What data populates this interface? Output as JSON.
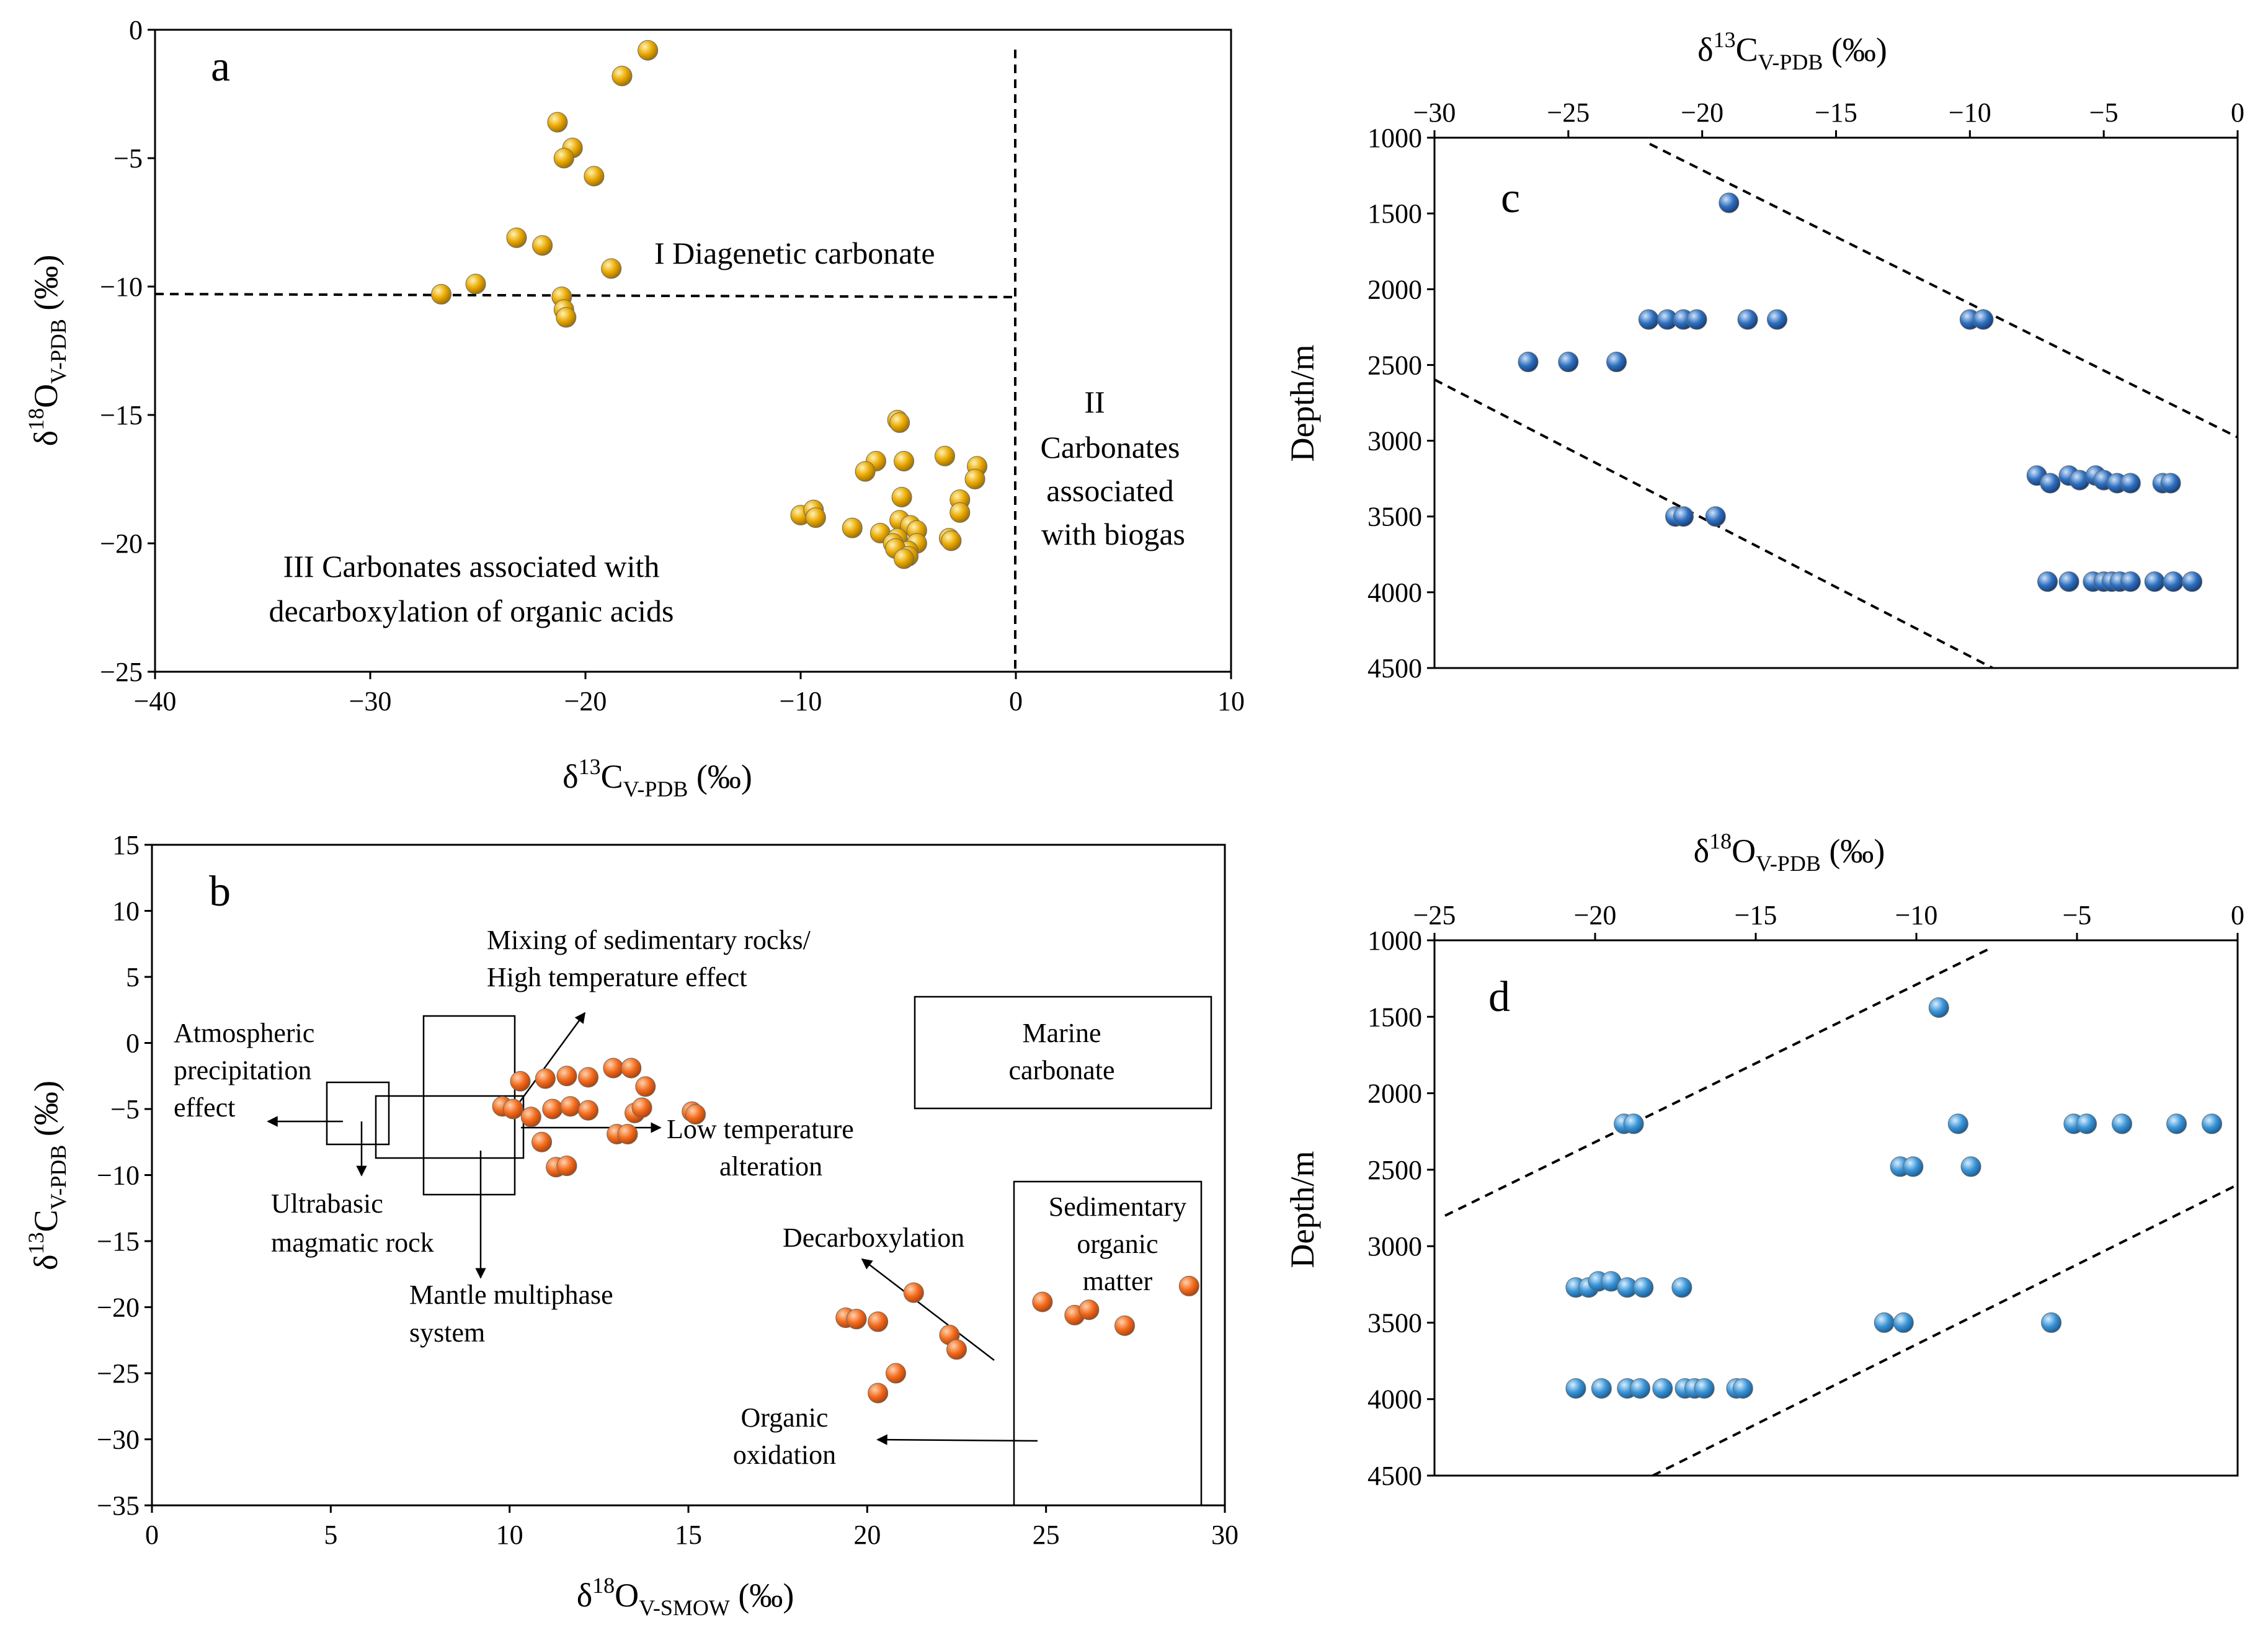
{
  "chart_data": [
    {
      "id": "a",
      "type": "scatter",
      "panel_label": "a",
      "xlabel_main": "δ",
      "xlabel_sup": "13",
      "xlabel_base": "C",
      "xlabel_sub": "V-PDB",
      "xlabel_unit": " (‰)",
      "ylabel_main": "δ",
      "ylabel_sup": "18",
      "ylabel_base": "O",
      "ylabel_sub": "V-PDB",
      "ylabel_unit": " (‰)",
      "xlim": [
        -40,
        10
      ],
      "ylim": [
        -25,
        0
      ],
      "xticks": [
        -40,
        -30,
        -20,
        -10,
        0,
        10
      ],
      "yticks": [
        -25,
        -20,
        -15,
        -10,
        -5,
        0
      ],
      "regions": [
        "I Diagenetic carbonate",
        "II",
        "Carbonates",
        "associated",
        "with biogas",
        "III  Carbonates associated with",
        "decarboxylation of organic acids"
      ],
      "points": [
        [
          -17.1,
          -0.8
        ],
        [
          -18.3,
          -1.8
        ],
        [
          -21.3,
          -3.6
        ],
        [
          -20.6,
          -4.6
        ],
        [
          -21.0,
          -5.0
        ],
        [
          -19.6,
          -5.7
        ],
        [
          -23.2,
          -8.1
        ],
        [
          -22.0,
          -8.4
        ],
        [
          -18.8,
          -9.3
        ],
        [
          -25.1,
          -9.9
        ],
        [
          -26.7,
          -10.3
        ],
        [
          -21.1,
          -10.4
        ],
        [
          -21.0,
          -10.9
        ],
        [
          -20.9,
          -11.2
        ],
        [
          -5.5,
          -15.2
        ],
        [
          -5.4,
          -15.3
        ],
        [
          -5.2,
          -16.8
        ],
        [
          -6.5,
          -16.8
        ],
        [
          -3.3,
          -16.6
        ],
        [
          -1.8,
          -17.0
        ],
        [
          -7.0,
          -17.2
        ],
        [
          -1.9,
          -17.5
        ],
        [
          -2.6,
          -18.3
        ],
        [
          -5.3,
          -18.2
        ],
        [
          -10.0,
          -18.9
        ],
        [
          -9.4,
          -18.7
        ],
        [
          -9.3,
          -19.0
        ],
        [
          -5.4,
          -19.1
        ],
        [
          -2.6,
          -18.8
        ],
        [
          -4.9,
          -19.3
        ],
        [
          -7.6,
          -19.4
        ],
        [
          -6.3,
          -19.6
        ],
        [
          -4.6,
          -19.5
        ],
        [
          -5.5,
          -19.8
        ],
        [
          -3.1,
          -19.8
        ],
        [
          -5.7,
          -20.0
        ],
        [
          -3.0,
          -19.9
        ],
        [
          -4.6,
          -20.0
        ],
        [
          -5.0,
          -20.3
        ],
        [
          -5.6,
          -20.2
        ],
        [
          -5.0,
          -20.5
        ],
        [
          -5.2,
          -20.6
        ]
      ]
    },
    {
      "id": "b",
      "type": "scatter",
      "panel_label": "b",
      "xlabel_main": "δ",
      "xlabel_sup": "18",
      "xlabel_base": "O",
      "xlabel_sub": "V-SMOW",
      "xlabel_unit": " (‰)",
      "ylabel_main": "δ",
      "ylabel_sup": "13",
      "ylabel_base": "C",
      "ylabel_sub": "V-PDB",
      "ylabel_unit": " (‰)",
      "xlim": [
        0,
        30
      ],
      "ylim": [
        -35,
        15
      ],
      "xticks": [
        0,
        5,
        10,
        15,
        20,
        25,
        30
      ],
      "yticks": [
        -35,
        -30,
        -25,
        -20,
        -15,
        -10,
        -5,
        0,
        5,
        10,
        15
      ],
      "annotations": [
        "Atmospheric",
        "precipitation",
        "effect",
        "Mixing of sedimentary rocks/",
        "High temperature effect",
        "Ultrabasic",
        "magmatic rock",
        "Mantle multiphase",
        "system",
        "Low temperature",
        "alteration",
        "Marine",
        "carbonate",
        "Decarboxylation",
        "Sedimentary",
        "organic",
        "matter",
        "Organic",
        "oxidation"
      ],
      "points": [
        [
          10.3,
          -2.9
        ],
        [
          11.0,
          -2.7
        ],
        [
          11.6,
          -2.5
        ],
        [
          12.2,
          -2.6
        ],
        [
          12.9,
          -1.9
        ],
        [
          13.4,
          -1.9
        ],
        [
          13.8,
          -3.3
        ],
        [
          9.8,
          -4.8
        ],
        [
          10.1,
          -5.0
        ],
        [
          10.6,
          -5.6
        ],
        [
          11.2,
          -5.0
        ],
        [
          11.7,
          -4.8
        ],
        [
          12.2,
          -5.1
        ],
        [
          13.5,
          -5.3
        ],
        [
          13.7,
          -4.9
        ],
        [
          15.1,
          -5.2
        ],
        [
          15.2,
          -5.4
        ],
        [
          10.9,
          -7.5
        ],
        [
          13.0,
          -6.9
        ],
        [
          13.3,
          -6.9
        ],
        [
          11.3,
          -9.4
        ],
        [
          11.6,
          -9.3
        ],
        [
          21.3,
          -18.9
        ],
        [
          19.4,
          -20.8
        ],
        [
          19.7,
          -20.9
        ],
        [
          20.3,
          -21.1
        ],
        [
          22.3,
          -22.1
        ],
        [
          22.5,
          -23.2
        ],
        [
          20.8,
          -25.0
        ],
        [
          20.3,
          -26.5
        ],
        [
          24.9,
          -19.6
        ],
        [
          25.8,
          -20.6
        ],
        [
          26.2,
          -20.2
        ],
        [
          27.2,
          -21.4
        ],
        [
          29.0,
          -18.4
        ]
      ]
    },
    {
      "id": "c",
      "type": "scatter",
      "panel_label": "c",
      "xlabel_main": "δ",
      "xlabel_sup": "13",
      "xlabel_base": "C",
      "xlabel_sub": "V-PDB",
      "xlabel_unit": " (‰)",
      "ylabel": "Depth/m",
      "xlim": [
        -30,
        0
      ],
      "ylim": [
        4500,
        1000
      ],
      "xticks": [
        -30,
        -25,
        -20,
        -15,
        -10,
        -5,
        0
      ],
      "yticks": [
        1000,
        1500,
        2000,
        2500,
        3000,
        3500,
        4000,
        4500
      ],
      "points": [
        [
          -19.0,
          1430
        ],
        [
          -22.0,
          2200
        ],
        [
          -21.3,
          2200
        ],
        [
          -20.7,
          2200
        ],
        [
          -20.2,
          2200
        ],
        [
          -18.3,
          2200
        ],
        [
          -17.2,
          2200
        ],
        [
          -10.0,
          2200
        ],
        [
          -9.5,
          2200
        ],
        [
          -26.5,
          2480
        ],
        [
          -25.0,
          2480
        ],
        [
          -23.2,
          2480
        ],
        [
          -21.0,
          3500
        ],
        [
          -20.7,
          3500
        ],
        [
          -19.5,
          3500
        ],
        [
          -7.5,
          3230
        ],
        [
          -7.0,
          3280
        ],
        [
          -6.3,
          3230
        ],
        [
          -5.9,
          3260
        ],
        [
          -5.3,
          3230
        ],
        [
          -5.0,
          3260
        ],
        [
          -4.5,
          3280
        ],
        [
          -4.0,
          3280
        ],
        [
          -2.8,
          3280
        ],
        [
          -2.5,
          3280
        ],
        [
          -7.1,
          3930
        ],
        [
          -6.3,
          3930
        ],
        [
          -5.4,
          3930
        ],
        [
          -5.0,
          3930
        ],
        [
          -4.7,
          3930
        ],
        [
          -4.4,
          3930
        ],
        [
          -4.0,
          3930
        ],
        [
          -3.1,
          3930
        ],
        [
          -2.4,
          3930
        ],
        [
          -1.7,
          3930
        ]
      ]
    },
    {
      "id": "d",
      "type": "scatter",
      "panel_label": "d",
      "xlabel_main": "δ",
      "xlabel_sup": "18",
      "xlabel_base": "O",
      "xlabel_sub": "V-PDB",
      "xlabel_unit": " (‰)",
      "ylabel": "Depth/m",
      "xlim": [
        -25,
        0
      ],
      "ylim": [
        4500,
        1000
      ],
      "xticks": [
        -25,
        -20,
        -15,
        -10,
        -5,
        0
      ],
      "yticks": [
        1000,
        1500,
        2000,
        2500,
        3000,
        3500,
        4000,
        4500
      ],
      "points": [
        [
          -9.3,
          1440
        ],
        [
          -19.1,
          2200
        ],
        [
          -18.8,
          2200
        ],
        [
          -8.7,
          2200
        ],
        [
          -5.1,
          2200
        ],
        [
          -4.7,
          2200
        ],
        [
          -3.6,
          2200
        ],
        [
          -1.9,
          2200
        ],
        [
          -0.8,
          2200
        ],
        [
          -10.5,
          2480
        ],
        [
          -10.1,
          2480
        ],
        [
          -8.3,
          2480
        ],
        [
          -20.6,
          3270
        ],
        [
          -20.2,
          3270
        ],
        [
          -19.9,
          3230
        ],
        [
          -19.5,
          3230
        ],
        [
          -19.0,
          3270
        ],
        [
          -18.5,
          3270
        ],
        [
          -17.3,
          3270
        ],
        [
          -11.0,
          3500
        ],
        [
          -10.4,
          3500
        ],
        [
          -5.8,
          3500
        ],
        [
          -20.6,
          3930
        ],
        [
          -19.8,
          3930
        ],
        [
          -19.0,
          3930
        ],
        [
          -18.6,
          3930
        ],
        [
          -17.9,
          3930
        ],
        [
          -17.2,
          3930
        ],
        [
          -16.9,
          3930
        ],
        [
          -16.6,
          3930
        ],
        [
          -15.6,
          3930
        ],
        [
          -15.4,
          3930
        ]
      ]
    }
  ],
  "colors": {
    "a": "#E8A800",
    "b": "#F26B1D",
    "c": "#2E6FBF",
    "d": "#3A94D6"
  }
}
